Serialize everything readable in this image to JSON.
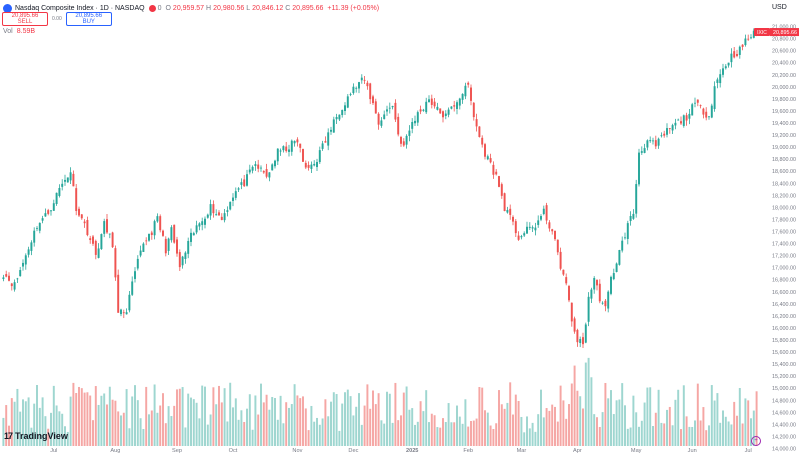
{
  "header": {
    "title": "Nasdaq Composite Index · 1D · NASDAQ",
    "o_label": "O",
    "o_value": "20,959.57",
    "h_label": "H",
    "h_value": "20,980.56",
    "l_label": "L",
    "l_value": "20,846.12",
    "c_label": "C",
    "c_value": "20,895.66",
    "change": "+11.39 (+0.05%)",
    "badge": "0"
  },
  "trade": {
    "sell_price": "20,895.66",
    "sell_label": "SELL",
    "spread": "0.00",
    "buy_price": "20,895.66",
    "buy_label": "BUY"
  },
  "volume": {
    "label": "Vol",
    "value": "8.59B"
  },
  "currency": "USD",
  "brand": {
    "mark": "17",
    "name": "TradingView"
  },
  "price_tag": {
    "symbol": "IXIC",
    "value": "20,895.66"
  },
  "colors": {
    "up": "#26a69a",
    "down": "#ef5350",
    "vol_up": "#9ed6d0",
    "vol_down": "#f5a6a4",
    "price_tag": "#f23645"
  },
  "chart_data": {
    "type": "candlestick",
    "ylim": [
      14000,
      21100
    ],
    "y_ticks": [
      14000,
      14200,
      14400,
      14600,
      14800,
      15000,
      15200,
      15400,
      15600,
      15800,
      16000,
      16200,
      16400,
      16600,
      16800,
      17000,
      17200,
      17400,
      17600,
      17800,
      18000,
      18200,
      18400,
      18600,
      18800,
      19000,
      19200,
      19400,
      19600,
      19800,
      20000,
      20200,
      20400,
      20600,
      20800,
      21000
    ],
    "y_tick_labels": [
      "14,000.00",
      "14,200.00",
      "14,400.00",
      "14,600.00",
      "14,800.00",
      "15,000.00",
      "15,200.00",
      "15,400.00",
      "15,600.00",
      "15,800.00",
      "16,000.00",
      "16,200.00",
      "16,400.00",
      "16,600.00",
      "16,800.00",
      "17,000.00",
      "17,200.00",
      "17,400.00",
      "17,600.00",
      "17,800.00",
      "18,000.00",
      "18,200.00",
      "18,400.00",
      "18,600.00",
      "18,800.00",
      "19,000.00",
      "19,200.00",
      "19,400.00",
      "19,600.00",
      "19,800.00",
      "20,000.00",
      "20,200.00",
      "20,400.00",
      "20,600.00",
      "20,800.00",
      "21,000.00"
    ],
    "x_labels": [
      {
        "label": "Jul",
        "day": 18
      },
      {
        "label": "Aug",
        "day": 40
      },
      {
        "label": "Sep",
        "day": 62
      },
      {
        "label": "Oct",
        "day": 82
      },
      {
        "label": "Nov",
        "day": 105
      },
      {
        "label": "Dec",
        "day": 125
      },
      {
        "label": "2025",
        "day": 146
      },
      {
        "label": "Feb",
        "day": 166
      },
      {
        "label": "Mar",
        "day": 185
      },
      {
        "label": "Apr",
        "day": 205
      },
      {
        "label": "May",
        "day": 226
      },
      {
        "label": "Jun",
        "day": 246
      },
      {
        "label": "Jul",
        "day": 266
      }
    ],
    "close_anchors": [
      [
        0,
        16900
      ],
      [
        4,
        16700
      ],
      [
        8,
        17200
      ],
      [
        12,
        17700
      ],
      [
        16,
        17900
      ],
      [
        20,
        18300
      ],
      [
        24,
        18600
      ],
      [
        26,
        18000
      ],
      [
        30,
        17600
      ],
      [
        33,
        17200
      ],
      [
        36,
        17700
      ],
      [
        39,
        17400
      ],
      [
        41,
        16200
      ],
      [
        44,
        16300
      ],
      [
        47,
        16900
      ],
      [
        50,
        17400
      ],
      [
        53,
        17600
      ],
      [
        55,
        17800
      ],
      [
        58,
        17300
      ],
      [
        60,
        17600
      ],
      [
        63,
        17000
      ],
      [
        67,
        17500
      ],
      [
        71,
        17800
      ],
      [
        74,
        18000
      ],
      [
        78,
        17800
      ],
      [
        82,
        18200
      ],
      [
        86,
        18400
      ],
      [
        90,
        18700
      ],
      [
        94,
        18500
      ],
      [
        98,
        18900
      ],
      [
        102,
        19000
      ],
      [
        105,
        19100
      ],
      [
        108,
        18600
      ],
      [
        112,
        18800
      ],
      [
        116,
        19200
      ],
      [
        120,
        19600
      ],
      [
        124,
        19900
      ],
      [
        127,
        20050
      ],
      [
        129,
        20100
      ],
      [
        132,
        19700
      ],
      [
        134,
        19400
      ],
      [
        137,
        19600
      ],
      [
        139,
        19700
      ],
      [
        141,
        19200
      ],
      [
        143,
        19000
      ],
      [
        146,
        19400
      ],
      [
        149,
        19600
      ],
      [
        152,
        19800
      ],
      [
        155,
        19600
      ],
      [
        158,
        19500
      ],
      [
        161,
        19700
      ],
      [
        164,
        19900
      ],
      [
        166,
        20000
      ],
      [
        168,
        19500
      ],
      [
        171,
        19000
      ],
      [
        173,
        18800
      ],
      [
        176,
        18500
      ],
      [
        179,
        18000
      ],
      [
        181,
        17800
      ],
      [
        184,
        17500
      ],
      [
        187,
        17600
      ],
      [
        190,
        17700
      ],
      [
        193,
        17900
      ],
      [
        196,
        17600
      ],
      [
        198,
        17200
      ],
      [
        201,
        16700
      ],
      [
        203,
        16100
      ],
      [
        205,
        15800
      ],
      [
        207,
        15700
      ],
      [
        209,
        16500
      ],
      [
        211,
        16800
      ],
      [
        213,
        16500
      ],
      [
        215,
        16300
      ],
      [
        217,
        16800
      ],
      [
        219,
        17100
      ],
      [
        221,
        17400
      ],
      [
        223,
        17700
      ],
      [
        225,
        17900
      ],
      [
        227,
        18900
      ],
      [
        230,
        19100
      ],
      [
        233,
        19000
      ],
      [
        236,
        19200
      ],
      [
        238,
        19300
      ],
      [
        241,
        19400
      ],
      [
        244,
        19500
      ],
      [
        247,
        19700
      ],
      [
        250,
        19600
      ],
      [
        252,
        19500
      ],
      [
        254,
        20000
      ],
      [
        257,
        20300
      ],
      [
        260,
        20500
      ],
      [
        263,
        20600
      ],
      [
        266,
        20800
      ],
      [
        269,
        20900
      ]
    ],
    "seed": 11,
    "volume_range": [
      3500000000,
      12000000000
    ]
  }
}
